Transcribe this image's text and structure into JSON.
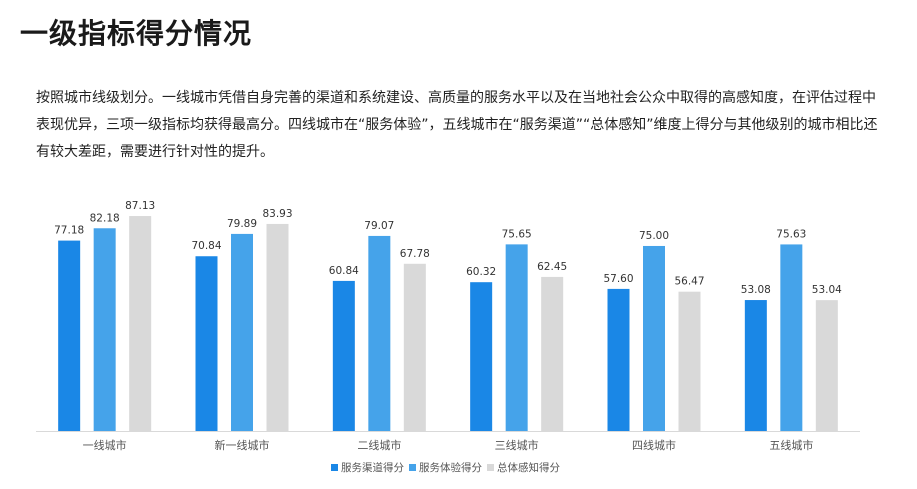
{
  "title": "一级指标得分情况",
  "description": "按照城市线级划分。一线城市凭借自身完善的渠道和系统建设、高质量的服务水平以及在当地社会公众中取得的高感知度，在评估过程中表现优异，三项一级指标均获得最高分。四线城市在“服务体验”，五线城市在“服务渠道”“总体感知”维度上得分与其他级别的城市相比还有较大差距，需要进行针对性的提升。",
  "chart_data": {
    "type": "bar",
    "title": "",
    "xlabel": "",
    "ylabel": "",
    "ylim": [
      0,
      100
    ],
    "grid": false,
    "legend": "bottom",
    "categories": [
      "一线城市",
      "新一线城市",
      "二线城市",
      "三线城市",
      "四线城市",
      "五线城市"
    ],
    "series": [
      {
        "name": "服务渠道得分",
        "color": "#1a87e6",
        "values": [
          77.18,
          70.84,
          60.84,
          60.32,
          57.6,
          53.08
        ]
      },
      {
        "name": "服务体验得分",
        "color": "#45a3ea",
        "values": [
          82.18,
          79.89,
          79.07,
          75.65,
          75.0,
          75.63
        ]
      },
      {
        "name": "总体感知得分",
        "color": "#d9d9d9",
        "values": [
          87.13,
          83.93,
          67.78,
          62.45,
          56.47,
          53.04
        ]
      }
    ]
  }
}
